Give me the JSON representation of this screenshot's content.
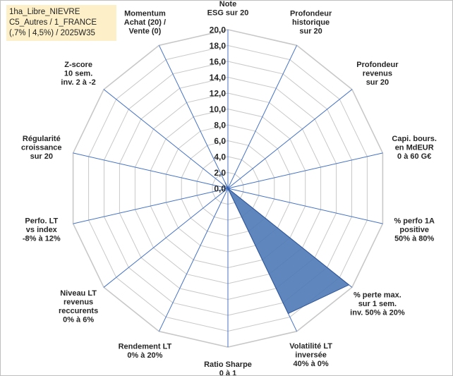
{
  "title_lines": [
    "1ha_Libre_NIEVRE",
    "C5_Autres / 1_FRANCE",
    "(,7% | 4,5%) / 2025W35"
  ],
  "colors": {
    "fill": "#4f79b7",
    "stroke": "#2e5597",
    "grid": "#c8c8c8",
    "spoke": "#4472c4",
    "title_bg": "#fdf0c8"
  },
  "chart_data": {
    "type": "radar",
    "scale": {
      "min": 0,
      "max": 20,
      "step": 2
    },
    "tick_labels": [
      "0,0",
      "2,0",
      "4,0",
      "6,0",
      "8,0",
      "10,0",
      "12,0",
      "14,0",
      "16,0",
      "18,0",
      "20,0"
    ],
    "axes": [
      {
        "lines": [
          "Note",
          "ESG sur 20"
        ],
        "value": 0
      },
      {
        "lines": [
          "Profondeur",
          "historique",
          "sur 20"
        ],
        "value": 0
      },
      {
        "lines": [
          "Profondeur",
          "revenus",
          "sur 20"
        ],
        "value": 0
      },
      {
        "lines": [
          "Capi. bours.",
          "en MdEUR",
          "0 à 60 G€"
        ],
        "value": 0
      },
      {
        "lines": [
          "% perfo 1A",
          "positive",
          "50% à 80%"
        ],
        "value": 0
      },
      {
        "lines": [
          "% perte max.",
          "sur 1 sem.",
          "inv. 50% à 20%"
        ],
        "value": 19.5
      },
      {
        "lines": [
          "Volatilité LT",
          "inversée",
          "40% à 0%"
        ],
        "value": 17.5
      },
      {
        "lines": [
          "Ratio Sharpe",
          "0 à 1"
        ],
        "value": 0
      },
      {
        "lines": [
          "Rendement LT",
          "0% à 20%"
        ],
        "value": 0
      },
      {
        "lines": [
          "Niveau LT",
          "revenus",
          "reccurents",
          "0% à 6%"
        ],
        "value": 0
      },
      {
        "lines": [
          "Perfo. LT",
          "vs index",
          "-8% à 12%"
        ],
        "value": 0
      },
      {
        "lines": [
          "Régularité",
          "croissance",
          "sur 20"
        ],
        "value": 0
      },
      {
        "lines": [
          "Z-score",
          "10 sem.",
          "inv. 2 à -2"
        ],
        "value": 0
      },
      {
        "lines": [
          "Momentum",
          "Achat (20) /",
          "Vente (0)"
        ],
        "value": 0.8
      }
    ]
  }
}
